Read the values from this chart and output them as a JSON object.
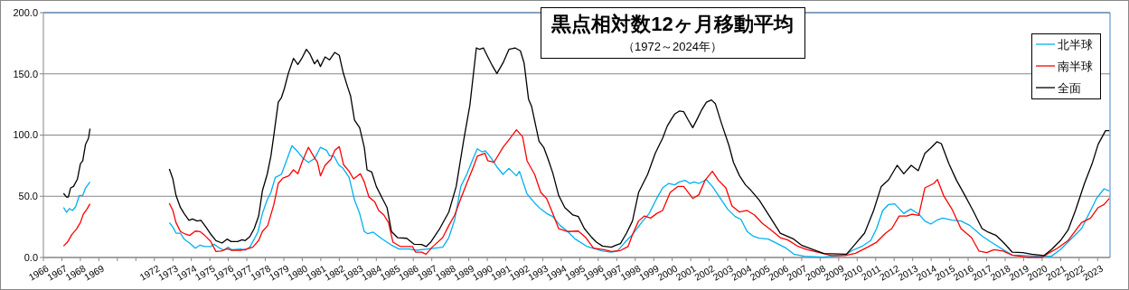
{
  "chart_data": {
    "type": "line",
    "title": "黒点相対数12ヶ月移動平均",
    "subtitle": "（1972～2024年）",
    "xlim": [
      1966,
      2023.67
    ],
    "xticks": [
      1966,
      1967,
      1968,
      1969,
      {
        "value": 1970,
        "label": null
      },
      {
        "value": 1971,
        "label": null
      },
      1972,
      1973,
      1974,
      1975,
      1976,
      1977,
      1978,
      1979,
      1980,
      1981,
      1982,
      1983,
      1984,
      1985,
      1986,
      1987,
      1988,
      1989,
      1990,
      1991,
      1992,
      1993,
      1994,
      1995,
      1996,
      1997,
      1998,
      1999,
      2000,
      2001,
      2002,
      2003,
      2004,
      2005,
      2006,
      2007,
      2008,
      2009,
      2010,
      2011,
      2012,
      2013,
      2014,
      2015,
      2016,
      2017,
      2018,
      2019,
      2020,
      2021,
      2022,
      2023
    ],
    "ylim": [
      0,
      200
    ],
    "yticks": [
      {
        "value": 0,
        "label": "0.0"
      },
      {
        "value": 50,
        "label": "50.0"
      },
      {
        "value": 100,
        "label": "100.0"
      },
      {
        "value": 150,
        "label": "150.0"
      },
      {
        "value": 200,
        "label": "200.0"
      }
    ],
    "grid": "y",
    "legend": "top right",
    "marker": "none",
    "line_style": "solid",
    "series": [
      {
        "name": "北半球",
        "color": "#00b0f0",
        "x": [
          1967.09,
          1967.25,
          1967.41,
          1967.57,
          1967.74,
          1967.95,
          1968.13,
          1968.28,
          1968.52,
          1970,
          1972.81,
          1973.0,
          1973.17,
          1973.41,
          1973.61,
          1973.9,
          1974.22,
          1974.47,
          1974.71,
          1975.04,
          1975.23,
          1975.53,
          1975.77,
          1975.98,
          1976.18,
          1976.67,
          1976.91,
          1977.16,
          1977.4,
          1977.61,
          1977.84,
          1978.1,
          1978.3,
          1978.54,
          1978.87,
          1979.11,
          1979.44,
          1979.76,
          1980.01,
          1980.33,
          1980.66,
          1980.98,
          1981.31,
          1981.47,
          1981.72,
          1981.96,
          1982.2,
          1982.53,
          1982.82,
          1983.1,
          1983.35,
          1983.54,
          1983.83,
          1984.33,
          1984.82,
          1985.23,
          1985.8,
          1986.12,
          1986.78,
          1987.59,
          1987.92,
          1988.24,
          1988.57,
          1988.89,
          1989.22,
          1989.46,
          1989.71,
          1989.9,
          1990.2,
          1990.52,
          1990.85,
          1991.17,
          1991.58,
          1991.74,
          1992.15,
          1992.56,
          1992.89,
          1993.21,
          1993.54,
          1993.94,
          1994.35,
          1994.76,
          1995.41,
          1996.23,
          1996.71,
          1997.04,
          1997.45,
          1997.85,
          1998.34,
          1998.75,
          1999.16,
          1999.48,
          1999.81,
          2000.13,
          2000.38,
          2000.7,
          2000.95,
          2001.19,
          2001.44,
          2001.85,
          2002.17,
          2002.5,
          2002.99,
          2003.4,
          2003.72,
          2004.05,
          2004.37,
          2004.7,
          2005.19,
          2005.68,
          2006.16,
          2006.57,
          2007.14,
          2008.12,
          2009.1,
          2009.42,
          2009.75,
          2010.24,
          2010.73,
          2011.05,
          2011.38,
          2011.7,
          2012.03,
          2012.52,
          2012.89,
          2013.33,
          2013.66,
          2013.98,
          2014.31,
          2014.63,
          2015.12,
          2015.61,
          2016.1,
          2016.75,
          2017.24,
          2017.89,
          2018.38,
          2019.03,
          2020.01,
          2020.5,
          2020.99,
          2021.48,
          2022.13,
          2022.62,
          2022.94,
          2023.35,
          2023.63
        ],
        "values": [
          40.8,
          36.9,
          39.9,
          38.4,
          41.3,
          50.7,
          50.7,
          56.8,
          61.7,
          null,
          28.5,
          24.8,
          19.9,
          19.9,
          15,
          11.8,
          7.6,
          10.1,
          8.9,
          8.9,
          10.8,
          7.6,
          5.9,
          8.4,
          6.4,
          6.9,
          5.9,
          8.4,
          15,
          21.2,
          35.9,
          47,
          53.1,
          65.4,
          67.9,
          77.7,
          91.3,
          86.3,
          81.4,
          77.7,
          80.7,
          90,
          87.6,
          83.1,
          82.7,
          75.8,
          72.8,
          65.4,
          47,
          35.9,
          21.2,
          19.4,
          20.7,
          15,
          10.1,
          6.9,
          6.9,
          5.9,
          6.9,
          8.4,
          16.2,
          31,
          58,
          67.9,
          80.2,
          88.8,
          86.3,
          87.1,
          81.4,
          74,
          67.9,
          72.8,
          66.7,
          70.4,
          51.9,
          44.5,
          39.6,
          35.9,
          33.5,
          26.1,
          21.2,
          15,
          8.9,
          5.2,
          4.4,
          5.2,
          12.5,
          18.7,
          28.5,
          35.9,
          48.2,
          56.8,
          60.5,
          59.3,
          61.7,
          63,
          60.5,
          61.7,
          60.5,
          63.5,
          58,
          50.7,
          39.6,
          33.5,
          31,
          21.2,
          17.5,
          15.7,
          15,
          11.3,
          7.6,
          2.7,
          1,
          0.2,
          1.5,
          2.7,
          5.9,
          8.9,
          13.8,
          23.6,
          38.4,
          43.3,
          43.8,
          35.9,
          39.6,
          35.4,
          29.8,
          27.3,
          30.5,
          32.2,
          30.5,
          29.8,
          26.1,
          17.5,
          12.5,
          6.4,
          2,
          1.5,
          1,
          1,
          6.4,
          13.8,
          23.6,
          38.4,
          48.2,
          56.1,
          54.4
        ]
      },
      {
        "name": "南半球",
        "color": "#ff0000",
        "x": [
          1967.09,
          1967.3,
          1967.54,
          1967.79,
          1968.0,
          1968.16,
          1968.36,
          1968.52,
          1970,
          1972.81,
          1973.0,
          1973.17,
          1973.41,
          1973.66,
          1973.9,
          1974.22,
          1974.47,
          1974.71,
          1975.04,
          1975.33,
          1975.61,
          1975.93,
          1976.18,
          1976.67,
          1976.99,
          1977.32,
          1977.64,
          1977.84,
          1978.13,
          1978.46,
          1978.7,
          1978.95,
          1979.27,
          1979.52,
          1979.76,
          1980.01,
          1980.33,
          1980.66,
          1980.82,
          1980.98,
          1981.23,
          1981.55,
          1981.76,
          1982.0,
          1982.23,
          1982.53,
          1982.77,
          1983.14,
          1983.35,
          1983.6,
          1983.92,
          1984.13,
          1984.41,
          1984.66,
          1984.9,
          1985.31,
          1985.96,
          1986.12,
          1986.45,
          1986.69,
          1987.02,
          1987.59,
          1987.92,
          1988.24,
          1988.57,
          1988.89,
          1989.22,
          1989.46,
          1989.87,
          1990.03,
          1990.36,
          1990.85,
          1991.26,
          1991.58,
          1991.91,
          1992.15,
          1992.56,
          1992.89,
          1993.21,
          1993.54,
          1993.86,
          1994.35,
          1994.92,
          1995.33,
          1995.74,
          1996.31,
          1996.71,
          1997.2,
          1997.61,
          1997.85,
          1998.18,
          1998.5,
          1998.83,
          1999.16,
          1999.48,
          1999.89,
          2000.3,
          2000.62,
          2001.11,
          2001.44,
          2001.77,
          2002.17,
          2002.5,
          2002.9,
          2003.23,
          2003.64,
          2004.05,
          2004.45,
          2004.86,
          2005.35,
          2005.84,
          2006.25,
          2006.82,
          2007.3,
          2007.96,
          2008.61,
          2009.34,
          2009.91,
          2010.56,
          2011.05,
          2011.54,
          2011.87,
          2012.27,
          2012.68,
          2012.97,
          2013.33,
          2013.66,
          2014.15,
          2014.34,
          2014.67,
          2015.12,
          2015.61,
          2016.18,
          2016.59,
          2017.0,
          2017.4,
          2017.89,
          2018.38,
          2019.2,
          2020.01,
          2020.34,
          2020.83,
          2021.4,
          2022.13,
          2022.62,
          2023.03,
          2023.35,
          2023.63
        ],
        "values": [
          9.3,
          12.5,
          18.7,
          23.1,
          28.5,
          35.4,
          39.6,
          43.8,
          null,
          44.3,
          38.4,
          28.5,
          21.2,
          19.2,
          18,
          21.6,
          21.2,
          18.2,
          13.3,
          4.9,
          5.2,
          7.1,
          5.9,
          5.9,
          6.9,
          8.4,
          13.8,
          21.2,
          26.1,
          43.3,
          60.5,
          64.9,
          66.7,
          71.6,
          68.4,
          79,
          90,
          81.4,
          77.7,
          66.7,
          75.3,
          80.2,
          87.6,
          90.5,
          75.8,
          70.4,
          64.2,
          68.4,
          61.7,
          49.4,
          45.3,
          38.4,
          34.7,
          28.5,
          12.5,
          8.9,
          8.9,
          4.4,
          4.4,
          2.7,
          8.4,
          16.2,
          26.1,
          34.7,
          48.2,
          60.5,
          72.8,
          82.7,
          85.1,
          79,
          77.7,
          90,
          97.9,
          104.3,
          98.6,
          79,
          67.9,
          53.1,
          48.2,
          35.9,
          23.6,
          21.2,
          21.6,
          16.2,
          7.6,
          6.4,
          4.9,
          5.7,
          8.9,
          18.7,
          29.8,
          33.9,
          32.2,
          35.9,
          38.4,
          53.1,
          58,
          58,
          48.2,
          51.2,
          63,
          70.4,
          63,
          56.8,
          42.1,
          37.1,
          38.4,
          34.7,
          28,
          22.4,
          16.2,
          14.3,
          8.9,
          6.4,
          3.9,
          1.5,
          1.5,
          3.4,
          8.4,
          12.5,
          19.9,
          23.6,
          33.9,
          33.9,
          35.4,
          34.4,
          56.8,
          60.5,
          63.7,
          50.7,
          39.6,
          23.6,
          16.2,
          5.2,
          3.9,
          6.4,
          5.2,
          2,
          0.2,
          0.2,
          3.4,
          7.6,
          13.8,
          28.5,
          32.2,
          40.8,
          43.3,
          48.2
        ]
      },
      {
        "name": "全面",
        "color": "#000000",
        "x": [
          1967.09,
          1967.25,
          1967.35,
          1967.47,
          1967.63,
          1967.84,
          1968.0,
          1968.13,
          1968.28,
          1968.44,
          1968.52,
          1970,
          1972.81,
          1973.0,
          1973.17,
          1973.41,
          1973.61,
          1973.87,
          1974.06,
          1974.31,
          1974.52,
          1974.79,
          1975.04,
          1975.33,
          1975.66,
          1975.93,
          1976.15,
          1976.5,
          1976.75,
          1976.91,
          1977.16,
          1977.4,
          1977.64,
          1977.84,
          1978.1,
          1978.3,
          1978.46,
          1978.7,
          1978.87,
          1979.03,
          1979.24,
          1979.52,
          1979.76,
          1979.97,
          1980.22,
          1980.41,
          1980.66,
          1980.82,
          1980.98,
          1981.23,
          1981.47,
          1981.75,
          1982.0,
          1982.2,
          1982.45,
          1982.61,
          1982.82,
          1983.1,
          1983.35,
          1983.5,
          1983.75,
          1984.0,
          1984.33,
          1984.58,
          1984.82,
          1985.15,
          1985.64,
          1986.04,
          1986.45,
          1986.69,
          1986.94,
          1987.43,
          1987.92,
          1988.32,
          1988.73,
          1989.06,
          1989.41,
          1989.58,
          1989.79,
          1989.95,
          1990.28,
          1990.52,
          1990.85,
          1991.17,
          1991.5,
          1991.79,
          1991.99,
          1992.23,
          1992.4,
          1992.8,
          1993.05,
          1993.29,
          1993.54,
          1993.86,
          1994.19,
          1994.63,
          1994.92,
          1995.25,
          1995.66,
          1995.9,
          1996.23,
          1996.71,
          1996.96,
          1997.2,
          1997.53,
          1997.85,
          1998.18,
          1998.67,
          1999.08,
          1999.48,
          1999.73,
          1999.97,
          2000.13,
          2000.38,
          2000.62,
          2000.87,
          2001.11,
          2001.36,
          2001.6,
          2001.85,
          2002.12,
          2002.33,
          2002.66,
          2003.07,
          2003.31,
          2003.64,
          2003.96,
          2004.21,
          2004.7,
          2005.27,
          2005.84,
          2006.57,
          2006.98,
          2007.63,
          2008.2,
          2009.42,
          2009.75,
          2010.4,
          2010.89,
          2011.3,
          2011.7,
          2012.16,
          2012.52,
          2012.92,
          2013.3,
          2013.66,
          2013.98,
          2014.31,
          2014.55,
          2014.96,
          2015.37,
          2015.78,
          2016.26,
          2016.75,
          2017.08,
          2017.49,
          2017.89,
          2018.38,
          2018.95,
          2019.44,
          2020.09,
          2020.5,
          2020.99,
          2021.4,
          2021.8,
          2022.29,
          2022.7,
          2023.03,
          2023.43,
          2023.63
        ],
        "values": [
          52.4,
          49.4,
          49.4,
          56.8,
          58,
          64,
          76.5,
          79,
          92.5,
          97.4,
          105.3,
          null,
          72.3,
          64.2,
          50.7,
          40.8,
          35.9,
          30.3,
          31.5,
          29.8,
          30.3,
          24.8,
          19.2,
          13.8,
          11.8,
          15,
          13,
          13,
          14.5,
          13.8,
          17,
          23.6,
          33.9,
          54.4,
          67.9,
          82.7,
          99.9,
          126.9,
          130.6,
          138,
          150.3,
          162.6,
          157.7,
          162.6,
          170,
          166.3,
          158.2,
          161.4,
          156,
          163.8,
          161.4,
          167.5,
          165.1,
          151.5,
          139.2,
          131.9,
          112.2,
          106,
          90,
          71.6,
          69.9,
          58,
          48.2,
          40.8,
          21.2,
          16.2,
          15.7,
          10.8,
          10.6,
          8.9,
          12.5,
          23.6,
          37.1,
          58,
          96.2,
          124.5,
          171.2,
          170,
          171.2,
          166.3,
          156.5,
          150.3,
          158.9,
          170,
          171.2,
          168.8,
          158.9,
          129.4,
          123.2,
          95,
          90,
          80.2,
          69.1,
          50.7,
          40.8,
          34.7,
          33.5,
          23.6,
          16.2,
          12.5,
          9.3,
          8.4,
          10.1,
          11.3,
          19.9,
          29.8,
          53.1,
          67.9,
          85.1,
          97.4,
          107.3,
          113.4,
          117.1,
          119.6,
          119.1,
          112.2,
          106,
          113.4,
          120.8,
          126.9,
          128.7,
          125.7,
          109.7,
          91.3,
          77.7,
          66.7,
          59.3,
          55.6,
          47,
          33.5,
          19.9,
          15,
          10.1,
          6.4,
          3.2,
          2.7,
          8.4,
          19.9,
          38.4,
          58,
          63.5,
          75.3,
          68.4,
          75.3,
          70.9,
          85.1,
          89.5,
          94.5,
          93,
          76.5,
          63,
          51.9,
          38.4,
          23.6,
          20.7,
          18.2,
          12.5,
          4.4,
          3.9,
          2.7,
          1.5,
          6.4,
          13.8,
          22.4,
          38.4,
          60.5,
          76.5,
          92.5,
          103.6,
          103.6
        ]
      }
    ]
  }
}
